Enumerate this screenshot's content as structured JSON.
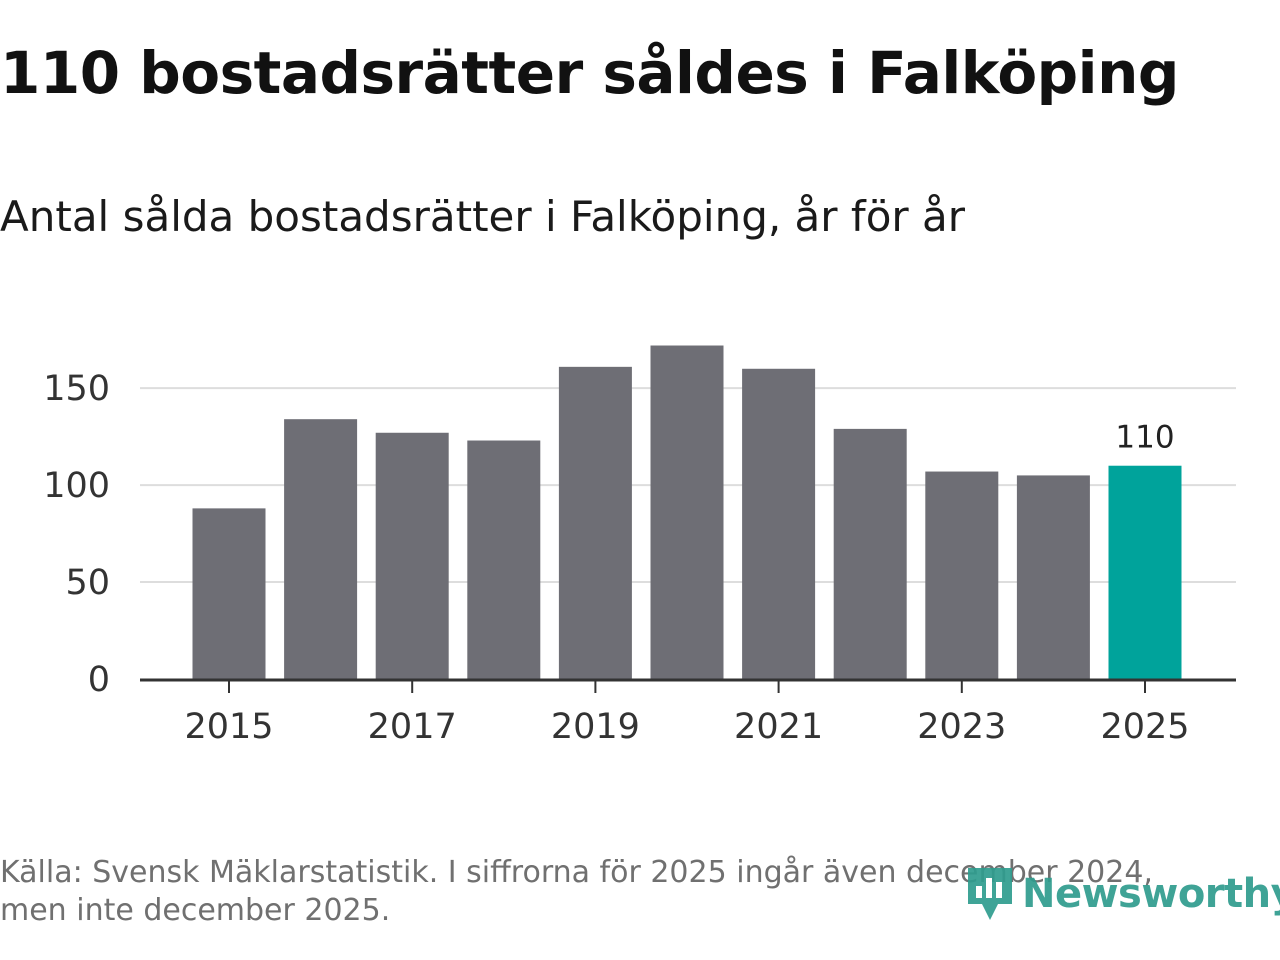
{
  "header": {
    "title": "110 bostadsrätter såldes i Falköping",
    "subtitle": "Antal sålda bostadsrätter i Falköping, år för år"
  },
  "footer": {
    "source": "Källa: Svensk Mäklarstatistik. I siffrorna för 2025 ingår även december 2024, men inte december 2025.",
    "brand": "Newsworthy",
    "brand_icon": "newsworthy-logo-icon"
  },
  "colors": {
    "bar": "#6e6e75",
    "highlight": "#00a39b",
    "grid": "#dddddd",
    "axis": "#333333",
    "brand": "#2f9c8e"
  },
  "chart_data": {
    "type": "bar",
    "title": "Antal sålda bostadsrätter i Falköping, år för år",
    "xlabel": "",
    "ylabel": "",
    "categories": [
      "2015",
      "2016",
      "2017",
      "2018",
      "2019",
      "2020",
      "2021",
      "2022",
      "2023",
      "2024",
      "2025"
    ],
    "values": [
      88,
      134,
      127,
      123,
      161,
      172,
      160,
      129,
      107,
      105,
      110
    ],
    "highlight_index": 10,
    "highlight_label": "110",
    "x_ticks": [
      "2015",
      "2017",
      "2019",
      "2021",
      "2023",
      "2025"
    ],
    "y_ticks": [
      0,
      50,
      100,
      150
    ],
    "ylim": [
      0,
      180
    ],
    "grid": true,
    "legend": "none"
  }
}
